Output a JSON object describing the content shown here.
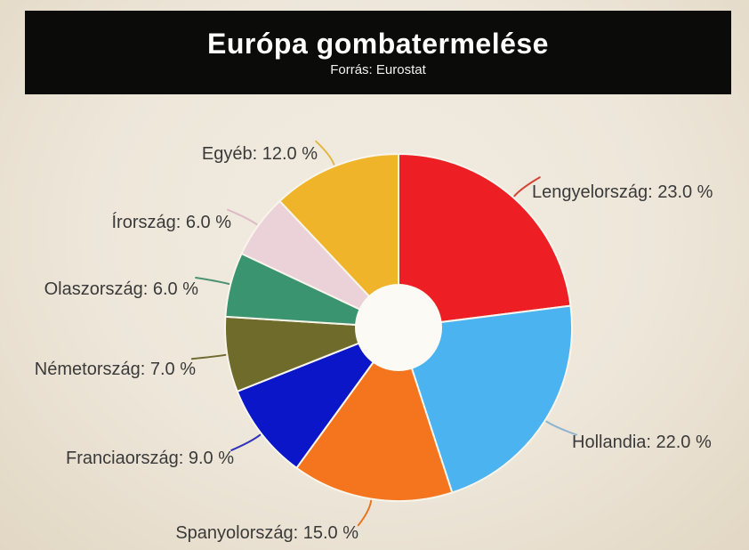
{
  "header": {
    "title": "Európa gombatermelése",
    "subtitle": "Forrás: Eurostat",
    "bg_color": "#0B0B09",
    "text_color": "#FFFFFF"
  },
  "theme": {
    "background_center": "#F2ECE1",
    "background_edge": "#E2D7C4",
    "slice_gap_color": "#F8F5EC",
    "donut_hole_color": "#FBFAF4",
    "label_text_color": "#3A3A3A"
  },
  "chart_data": {
    "type": "pie",
    "title": "Európa gombatermelése",
    "subtitle": "Forrás: Eurostat",
    "donut": true,
    "direction": "clockwise",
    "start_angle_deg": 0,
    "unit": "%",
    "legend_position": "none",
    "label_style": "callout",
    "slices": [
      {
        "label": "Lengyelország",
        "value": 23.0,
        "display": "Lengyelország: 23.0 %",
        "color": "#ED1F24",
        "leader_color": "#D04538"
      },
      {
        "label": "Hollandia",
        "value": 22.0,
        "display": "Hollandia: 22.0 %",
        "color": "#4BB3F0",
        "leader_color": "#8FB4CC"
      },
      {
        "label": "Spanyolország",
        "value": 15.0,
        "display": "Spanyolország: 15.0 %",
        "color": "#F5751E",
        "leader_color": "#E8761F"
      },
      {
        "label": "Franciaország",
        "value": 9.0,
        "display": "Franciaország: 9.0 %",
        "color": "#0A16C8",
        "leader_color": "#3333B8"
      },
      {
        "label": "Németország",
        "value": 7.0,
        "display": "Németország: 7.0 %",
        "color": "#6F6B2A",
        "leader_color": "#6E6A2E"
      },
      {
        "label": "Olaszország",
        "value": 6.0,
        "display": "Olaszország: 6.0 %",
        "color": "#3A9470",
        "leader_color": "#4B9173"
      },
      {
        "label": "Írország",
        "value": 6.0,
        "display": "Írország: 6.0 %",
        "color": "#EBD1D8",
        "leader_color": "#DDBBC6"
      },
      {
        "label": "Egyéb",
        "value": 12.0,
        "display": "Egyéb: 12.0 %",
        "color": "#F0B42A",
        "leader_color": "#E3B642"
      }
    ]
  }
}
